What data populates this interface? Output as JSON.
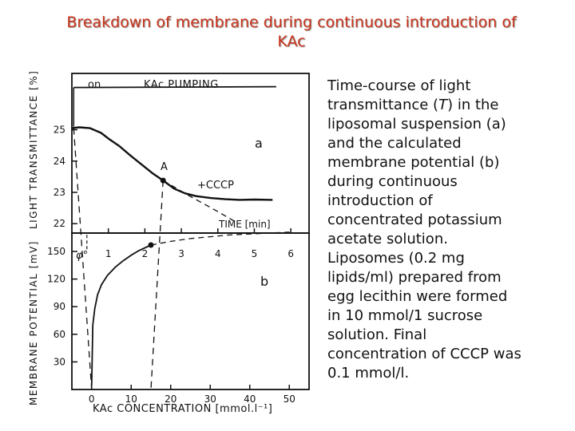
{
  "title_line1": "Breakdown of membrane during continuous introduction of",
  "title_line2": "KAc",
  "description": {
    "l1": "Time-course of light",
    "l2_pre": "transmittance (",
    "l2_T": "T",
    "l2_post": ") in the",
    "l3": "liposomal suspension (a)",
    "l4": "and the calculated",
    "l5": "membrane potential (b)",
    "l6": "during continuous",
    "l7": "introduction of",
    "l8": "concentrated potassium",
    "l9": "acetate solution.",
    "l10": "Liposomes (0.2 mg",
    "l11": "lipids/ml) prepared from",
    "l12": "egg lecithin were formed",
    "l13": "in 10 mmol/1 sucrose",
    "l14": "solution. Final",
    "l15": "concentration of CCCP was",
    "l16": "0.1 mmol/l."
  },
  "colors": {
    "title": "#c8341c",
    "ink": "#111111"
  },
  "chart_data": [
    {
      "type": "line",
      "panel_label": "a",
      "ylabel": "LIGHT TRANSMITTANCE [%]",
      "xlabel": "TIME [min]",
      "xlim": [
        0,
        6.5
      ],
      "ylim": [
        21.7,
        26.8
      ],
      "x_ticks": [
        1,
        2,
        3,
        4,
        5,
        6
      ],
      "y_ticks": [
        22,
        23,
        24,
        25
      ],
      "annotations": {
        "on": "on",
        "pumping": "KAc PUMPING",
        "point": "A",
        "cccp": "+CCCP"
      },
      "series": [
        {
          "x": [
            0,
            0.2,
            0.5,
            0.8,
            1.0,
            1.3,
            1.6,
            1.9,
            2.2,
            2.5,
            2.8,
            3.1,
            3.4,
            3.8,
            4.2,
            4.6,
            5.0,
            5.5
          ],
          "y": [
            25.05,
            25.08,
            25.05,
            24.9,
            24.72,
            24.48,
            24.18,
            23.9,
            23.62,
            23.38,
            23.12,
            22.97,
            22.88,
            22.82,
            22.78,
            22.76,
            22.77,
            22.76
          ]
        },
        {
          "x": [
            2.5,
            3.2,
            3.9,
            4.5
          ],
          "y": [
            23.38,
            22.9,
            22.45,
            22.05
          ]
        }
      ]
    },
    {
      "type": "line",
      "panel_label": "b",
      "ylabel": "MEMBRANE POTENTIAL [mV]",
      "xlabel": "KAc CONCENTRATION [mmol.l⁻¹]",
      "xlim": [
        -5,
        55
      ],
      "ylim": [
        0,
        170
      ],
      "x_ticks": [
        0,
        10,
        20,
        30,
        40,
        50
      ],
      "y_ticks": [
        30,
        60,
        90,
        120,
        150
      ],
      "annotations": {
        "phi": "φ°"
      },
      "series": [
        {
          "x": [
            0,
            0.3,
            0.8,
            1.5,
            2.5,
            4,
            6,
            8,
            10,
            12,
            15
          ],
          "y": [
            5,
            70,
            88,
            103,
            114,
            124,
            133,
            140,
            146,
            151,
            157
          ]
        },
        {
          "x": [
            15,
            20,
            25,
            30,
            35,
            40,
            45,
            50
          ],
          "y": [
            157,
            161,
            164,
            166,
            168,
            169,
            170,
            171
          ]
        }
      ]
    }
  ]
}
